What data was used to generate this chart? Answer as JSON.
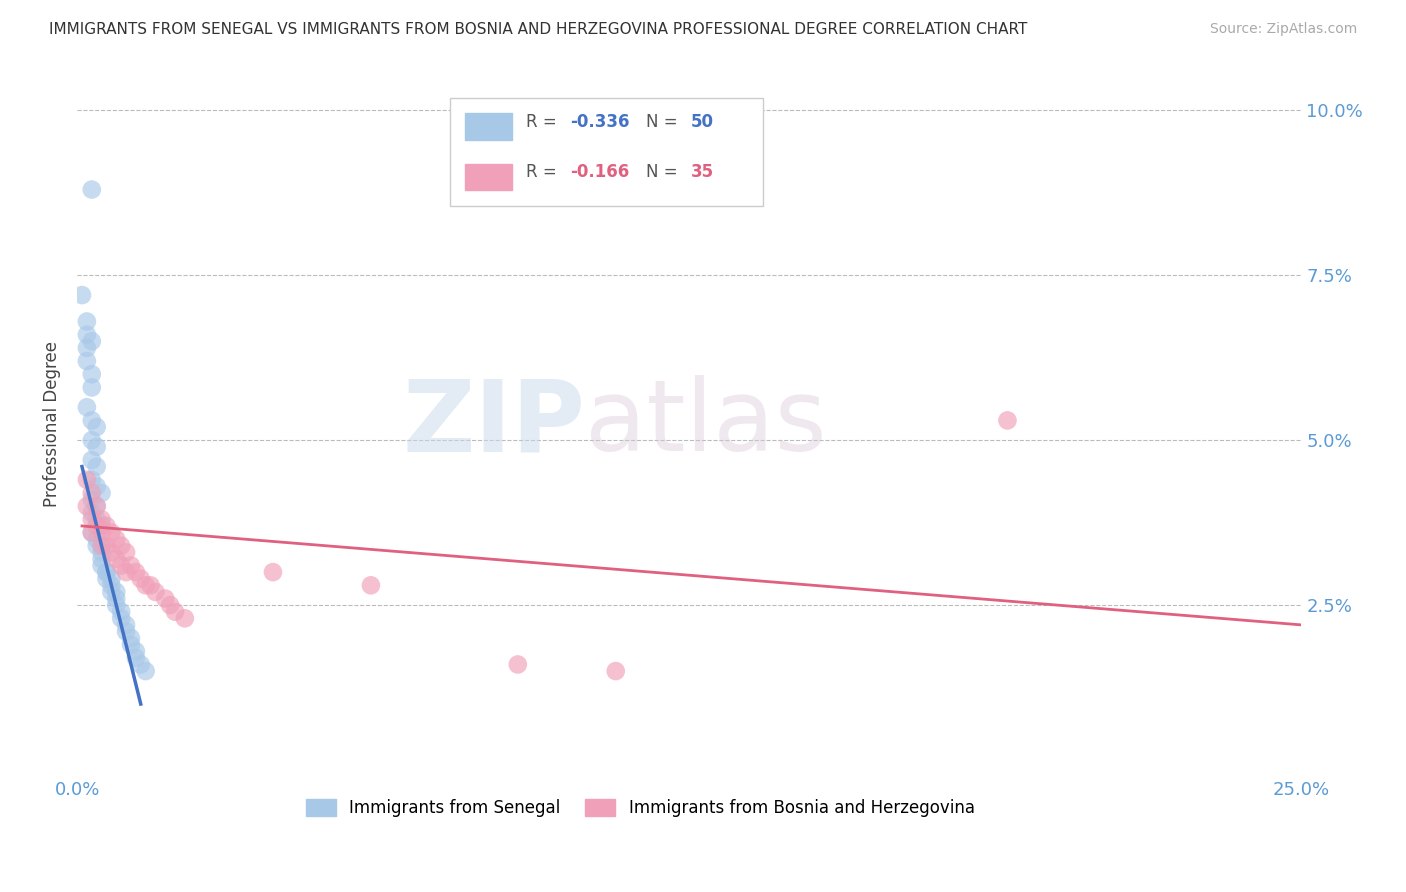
{
  "title": "IMMIGRANTS FROM SENEGAL VS IMMIGRANTS FROM BOSNIA AND HERZEGOVINA PROFESSIONAL DEGREE CORRELATION CHART",
  "source": "Source: ZipAtlas.com",
  "ylabel": "Professional Degree",
  "xlim": [
    0.0,
    0.25
  ],
  "ylim": [
    0.0,
    0.105
  ],
  "color_blue": "#A8C8E8",
  "color_pink": "#F0A0B8",
  "line_blue": "#4472C4",
  "line_pink": "#E06080",
  "watermark_zip": "ZIP",
  "watermark_atlas": "atlas",
  "senegal_x": [
    0.003,
    0.001,
    0.002,
    0.002,
    0.002,
    0.003,
    0.002,
    0.003,
    0.003,
    0.002,
    0.003,
    0.004,
    0.003,
    0.004,
    0.003,
    0.004,
    0.003,
    0.004,
    0.005,
    0.003,
    0.004,
    0.003,
    0.004,
    0.005,
    0.003,
    0.004,
    0.005,
    0.004,
    0.005,
    0.005,
    0.005,
    0.006,
    0.006,
    0.006,
    0.007,
    0.007,
    0.007,
    0.008,
    0.008,
    0.008,
    0.009,
    0.009,
    0.01,
    0.01,
    0.011,
    0.011,
    0.012,
    0.012,
    0.013,
    0.014
  ],
  "senegal_y": [
    0.088,
    0.072,
    0.068,
    0.066,
    0.064,
    0.065,
    0.062,
    0.06,
    0.058,
    0.055,
    0.053,
    0.052,
    0.05,
    0.049,
    0.047,
    0.046,
    0.044,
    0.043,
    0.042,
    0.041,
    0.04,
    0.039,
    0.038,
    0.037,
    0.036,
    0.035,
    0.034,
    0.034,
    0.033,
    0.032,
    0.031,
    0.03,
    0.03,
    0.029,
    0.029,
    0.028,
    0.027,
    0.027,
    0.026,
    0.025,
    0.024,
    0.023,
    0.022,
    0.021,
    0.02,
    0.019,
    0.018,
    0.017,
    0.016,
    0.015
  ],
  "bosnia_x": [
    0.002,
    0.002,
    0.003,
    0.003,
    0.003,
    0.004,
    0.004,
    0.005,
    0.005,
    0.005,
    0.006,
    0.006,
    0.007,
    0.007,
    0.008,
    0.008,
    0.009,
    0.009,
    0.01,
    0.01,
    0.011,
    0.012,
    0.013,
    0.014,
    0.015,
    0.016,
    0.018,
    0.019,
    0.02,
    0.022,
    0.04,
    0.06,
    0.09,
    0.19,
    0.11
  ],
  "bosnia_y": [
    0.044,
    0.04,
    0.042,
    0.038,
    0.036,
    0.04,
    0.037,
    0.038,
    0.036,
    0.034,
    0.037,
    0.034,
    0.036,
    0.033,
    0.035,
    0.032,
    0.034,
    0.031,
    0.033,
    0.03,
    0.031,
    0.03,
    0.029,
    0.028,
    0.028,
    0.027,
    0.026,
    0.025,
    0.024,
    0.023,
    0.03,
    0.028,
    0.016,
    0.053,
    0.015
  ],
  "sen_line_x": [
    0.001,
    0.013
  ],
  "sen_line_y": [
    0.046,
    0.01
  ],
  "bos_line_x": [
    0.001,
    0.25
  ],
  "bos_line_y": [
    0.037,
    0.022
  ]
}
